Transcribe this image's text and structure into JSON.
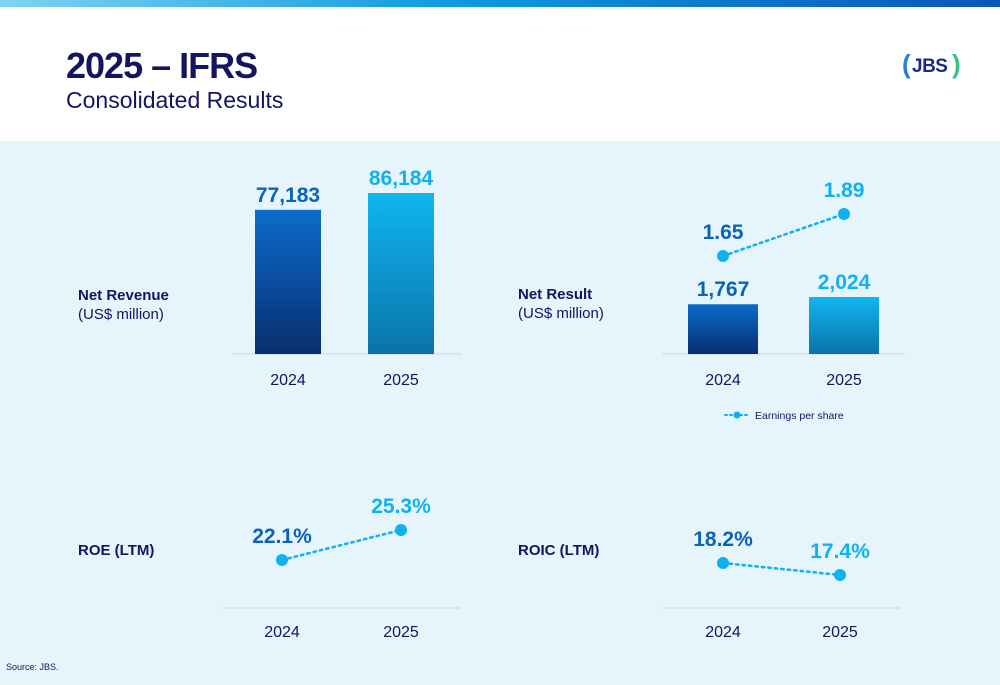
{
  "header": {
    "title": "2025 – IFRS",
    "subtitle": "Consolidated Results",
    "logo_text": "JBS"
  },
  "colors": {
    "navy": "#13155f",
    "dark_blue": "#0a63b8",
    "light_blue": "#0fb2ef",
    "panel": "#e6f4fc",
    "axis": "#c6d7e3"
  },
  "labels": {
    "net_revenue": "Net Revenue",
    "net_revenue_unit": "(US$ million)",
    "net_result": "Net Result",
    "net_result_unit": "(US$ million)",
    "roe": "ROE (LTM)",
    "roic": "ROIC (LTM)"
  },
  "chart_data": [
    {
      "id": "net_revenue",
      "type": "bar",
      "title": "Net Revenue",
      "ylabel": "(US$ million)",
      "categories": [
        "2024",
        "2025"
      ],
      "values": [
        77183,
        86184
      ],
      "value_labels": [
        "77,183",
        "86,184"
      ],
      "ylim": [
        0,
        86184
      ]
    },
    {
      "id": "net_result",
      "type": "bar",
      "title": "Net Result",
      "ylabel": "(US$ million)",
      "categories": [
        "2024",
        "2025"
      ],
      "values": [
        1767,
        2024
      ],
      "value_labels": [
        "1,767",
        "2,024"
      ],
      "ylim": [
        0,
        2024
      ],
      "overlay": {
        "type": "line",
        "name": "Earnings per share",
        "values": [
          1.65,
          1.89
        ],
        "value_labels": [
          "1.65",
          "1.89"
        ]
      },
      "legend": "Earnings per share"
    },
    {
      "id": "roe",
      "type": "line",
      "title": "ROE (LTM)",
      "categories": [
        "2024",
        "2025"
      ],
      "values": [
        22.1,
        25.3
      ],
      "value_labels": [
        "22.1%",
        "25.3%"
      ]
    },
    {
      "id": "roic",
      "type": "line",
      "title": "ROIC (LTM)",
      "categories": [
        "2024",
        "2025"
      ],
      "values": [
        18.2,
        17.4
      ],
      "value_labels": [
        "18.2%",
        "17.4%"
      ]
    }
  ],
  "footer": {
    "source": "Source: JBS."
  }
}
